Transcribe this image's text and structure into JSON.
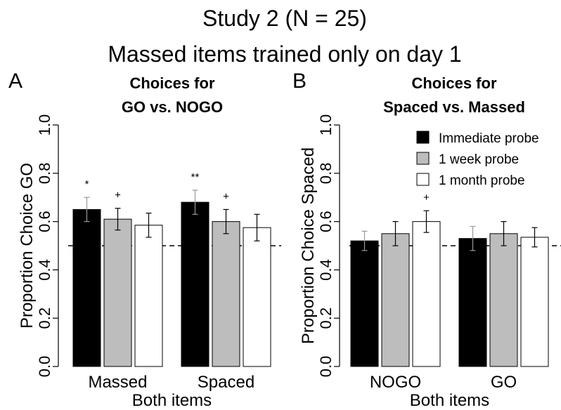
{
  "figure": {
    "title_line1": "Study 2 (N = 25)",
    "title_line2": "Massed items trained only on day 1"
  },
  "chart_data": [
    {
      "type": "bar",
      "panel_letter": "A",
      "title_line1": "Choices for",
      "title_line2": "GO vs. NOGO",
      "ylabel": "Proportion Choice GO",
      "xlabel": "Both items",
      "ylim": [
        0,
        1
      ],
      "yticks": [
        "0.0",
        "0.2",
        "0.4",
        "0.6",
        "0.8",
        "1.0"
      ],
      "reference_line": 0.5,
      "categories": [
        "Massed",
        "Spaced"
      ],
      "series": [
        {
          "name": "Immediate probe",
          "color": "#000000",
          "values": [
            0.65,
            0.68
          ],
          "errors": [
            0.05,
            0.05
          ]
        },
        {
          "name": "1 week probe",
          "color": "#bdbdbd",
          "values": [
            0.61,
            0.6
          ],
          "errors": [
            0.045,
            0.05
          ]
        },
        {
          "name": "1 month probe",
          "color": "#ffffff",
          "values": [
            0.585,
            0.575
          ],
          "errors": [
            0.05,
            0.055
          ]
        }
      ],
      "annotations": [
        [
          "*",
          "+",
          ""
        ],
        [
          "**",
          "+",
          ""
        ]
      ],
      "legend": false
    },
    {
      "type": "bar",
      "panel_letter": "B",
      "title_line1": "Choices for",
      "title_line2": "Spaced vs. Massed",
      "ylabel": "Proportion Choice Spaced",
      "xlabel": "Both items",
      "ylim": [
        0,
        1
      ],
      "yticks": [
        "0.0",
        "0.2",
        "0.4",
        "0.6",
        "0.8",
        "1.0"
      ],
      "reference_line": 0.5,
      "categories": [
        "NOGO",
        "GO"
      ],
      "series": [
        {
          "name": "Immediate probe",
          "color": "#000000",
          "values": [
            0.52,
            0.53
          ],
          "errors": [
            0.04,
            0.05
          ]
        },
        {
          "name": "1 week probe",
          "color": "#bdbdbd",
          "values": [
            0.55,
            0.55
          ],
          "errors": [
            0.05,
            0.05
          ]
        },
        {
          "name": "1 month probe",
          "color": "#ffffff",
          "values": [
            0.6,
            0.535
          ],
          "errors": [
            0.045,
            0.04
          ]
        }
      ],
      "annotations": [
        [
          "",
          "",
          "+"
        ],
        [
          "",
          "",
          ""
        ]
      ],
      "legend": true,
      "legend_position": "top-right"
    }
  ]
}
